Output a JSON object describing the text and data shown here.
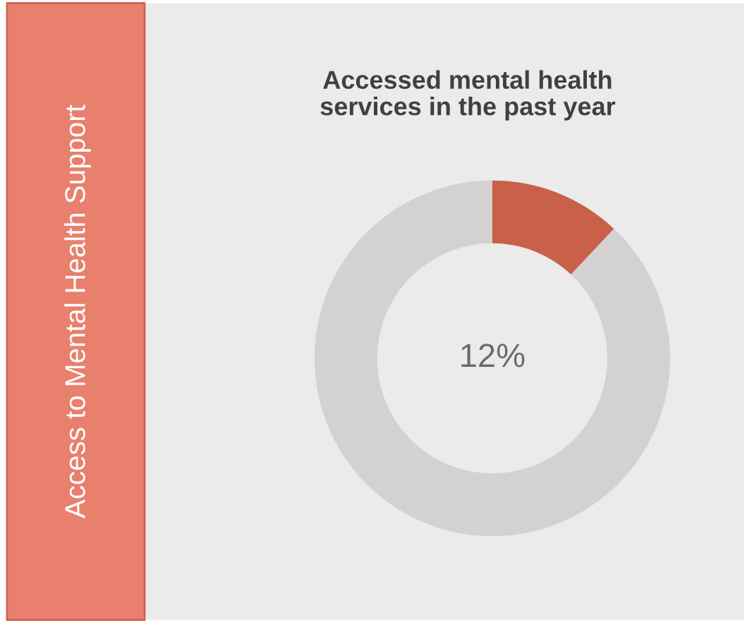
{
  "chart_data": {
    "type": "donut",
    "title": "Accessed mental health\nservices in the past year",
    "subtitle": "Access to Mental Health Support",
    "categories": [
      null,
      null
    ],
    "values": [
      12,
      88
    ],
    "colors": [
      "#c8604a",
      "#d3d1d1"
    ],
    "annotations": [
      "12%"
    ]
  }
}
